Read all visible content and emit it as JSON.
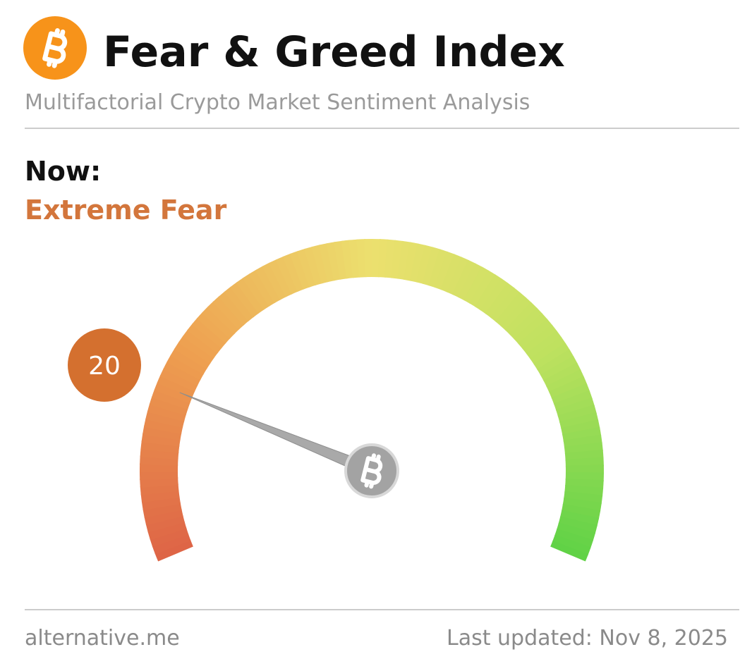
{
  "chart_data": {
    "type": "gauge",
    "title": "Fear & Greed Index",
    "subtitle": "Multifactorial Crypto Market Sentiment Analysis",
    "now_label": "Now:",
    "classification": "Extreme Fear",
    "value": 20,
    "ylim": [
      0,
      100
    ],
    "value_color": "#d4702f",
    "source": "alternative.me",
    "updated": "Last updated: Nov 8, 2025"
  }
}
